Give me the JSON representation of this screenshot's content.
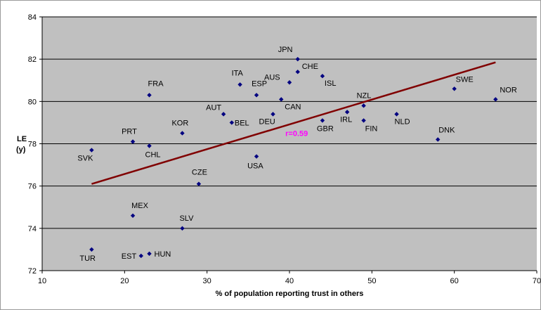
{
  "chart_data": {
    "type": "scatter",
    "xlabel": "% of population reporting trust in others",
    "ylabel_line1": "LE",
    "ylabel_line2": "(y)",
    "xlim": [
      10,
      70
    ],
    "ylim": [
      72,
      84
    ],
    "xticks": [
      10,
      20,
      30,
      40,
      50,
      60,
      70
    ],
    "yticks": [
      72,
      74,
      76,
      78,
      80,
      82,
      84
    ],
    "grid": "horizontal",
    "legend": "none",
    "annotation": "r=0.59",
    "colors": {
      "plot_bg": "#c0c0c0",
      "marker": "#000080",
      "trendline": "#800000",
      "annotation": "#ff00ff",
      "gridline": "#000000"
    },
    "trendline": {
      "x": [
        16,
        65
      ],
      "y": [
        76.1,
        81.85
      ]
    },
    "points": [
      {
        "label": "JPN",
        "x": 41,
        "y": 82.0
      },
      {
        "label": "CHE",
        "x": 41,
        "y": 81.4
      },
      {
        "label": "ISL",
        "x": 44,
        "y": 81.2
      },
      {
        "label": "AUS",
        "x": 40,
        "y": 80.9
      },
      {
        "label": "ITA",
        "x": 34,
        "y": 80.8
      },
      {
        "label": "ESP",
        "x": 36,
        "y": 80.3
      },
      {
        "label": "FRA",
        "x": 23,
        "y": 80.3
      },
      {
        "label": "SWE",
        "x": 60,
        "y": 80.6
      },
      {
        "label": "NOR",
        "x": 65,
        "y": 80.1
      },
      {
        "label": "CAN",
        "x": 39,
        "y": 80.1
      },
      {
        "label": "NZL",
        "x": 49,
        "y": 79.8
      },
      {
        "label": "IRL",
        "x": 47,
        "y": 79.5
      },
      {
        "label": "NLD",
        "x": 53,
        "y": 79.4
      },
      {
        "label": "AUT",
        "x": 32,
        "y": 79.4
      },
      {
        "label": "DEU",
        "x": 38,
        "y": 79.4
      },
      {
        "label": "FIN",
        "x": 49,
        "y": 79.1
      },
      {
        "label": "GBR",
        "x": 44,
        "y": 79.1
      },
      {
        "label": "BEL",
        "x": 33,
        "y": 79.0
      },
      {
        "label": "KOR",
        "x": 27,
        "y": 78.5
      },
      {
        "label": "DNK",
        "x": 58,
        "y": 78.2
      },
      {
        "label": "PRT",
        "x": 21,
        "y": 78.1
      },
      {
        "label": "CHL",
        "x": 23,
        "y": 77.9
      },
      {
        "label": "SVK",
        "x": 16,
        "y": 77.7
      },
      {
        "label": "USA",
        "x": 36,
        "y": 77.4
      },
      {
        "label": "CZE",
        "x": 29,
        "y": 76.1
      },
      {
        "label": "MEX",
        "x": 21,
        "y": 74.6
      },
      {
        "label": "SLV",
        "x": 27,
        "y": 74.0
      },
      {
        "label": "TUR",
        "x": 16,
        "y": 73.0
      },
      {
        "label": "HUN",
        "x": 23,
        "y": 72.8
      },
      {
        "label": "EST",
        "x": 22,
        "y": 72.7
      }
    ]
  }
}
